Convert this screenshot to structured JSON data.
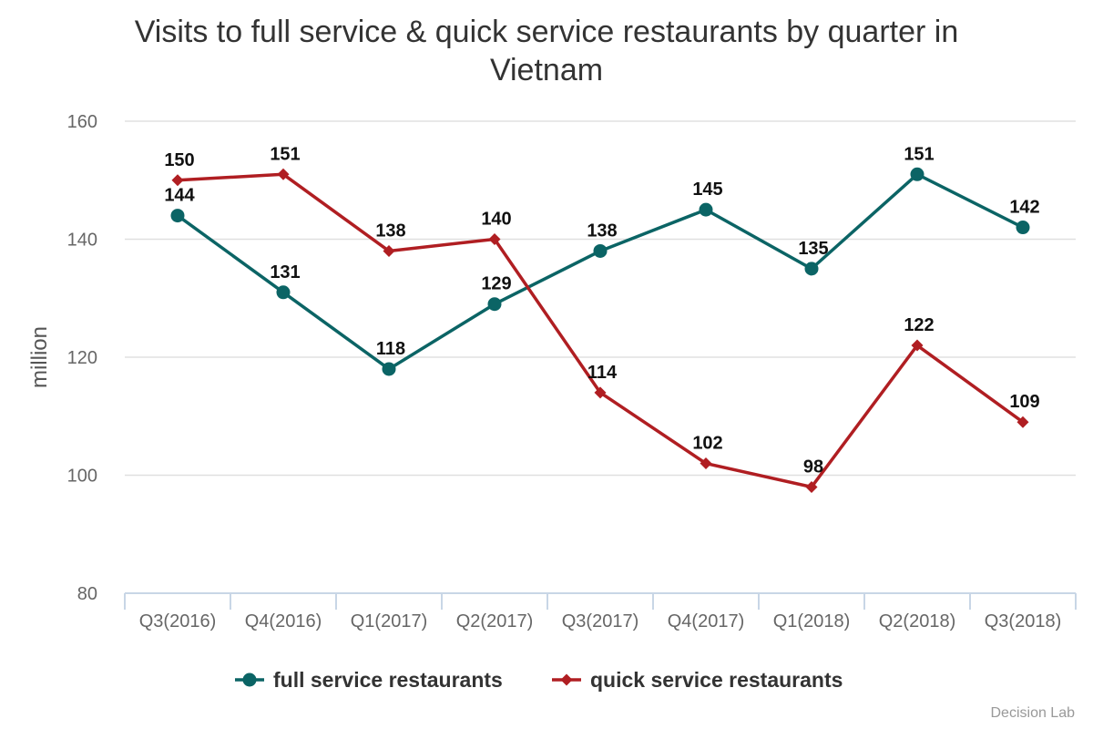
{
  "chart_data": {
    "type": "line",
    "title_lines": [
      "Visits to full service & quick service restaurants by quarter in",
      "Vietnam"
    ],
    "ylabel": "million",
    "xlabel": "",
    "categories": [
      "Q3(2016)",
      "Q4(2016)",
      "Q1(2017)",
      "Q2(2017)",
      "Q3(2017)",
      "Q4(2017)",
      "Q1(2018)",
      "Q2(2018)",
      "Q3(2018)"
    ],
    "ylim": [
      80,
      160
    ],
    "yticks": [
      80,
      100,
      120,
      140,
      160
    ],
    "grid": true,
    "legend_position": "bottom",
    "series": [
      {
        "name": "full service restaurants",
        "marker": "circle",
        "color": "#0b6465",
        "values": [
          144,
          131,
          118,
          129,
          138,
          145,
          135,
          151,
          142
        ]
      },
      {
        "name": "quick service restaurants",
        "marker": "diamond",
        "color": "#b01e22",
        "values": [
          150,
          151,
          138,
          140,
          114,
          102,
          98,
          122,
          109
        ]
      }
    ]
  },
  "credit": "Decision Lab"
}
